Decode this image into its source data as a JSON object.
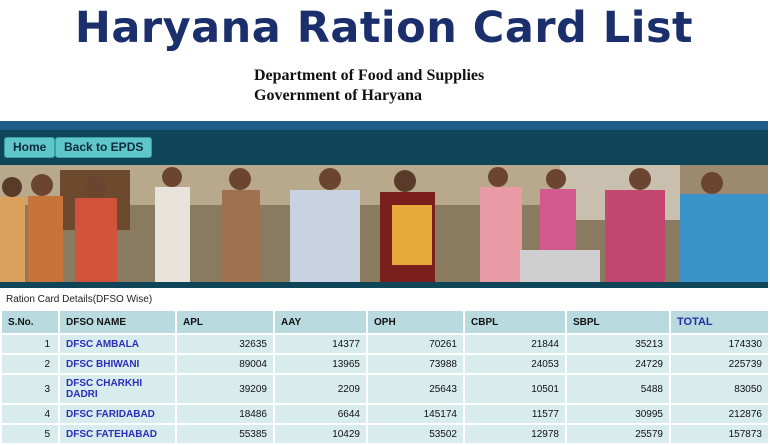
{
  "banner": {
    "title": "Haryana Ration Card List"
  },
  "department": {
    "line1": "Department of Food and Supplies",
    "line2": "Government of Haryana"
  },
  "nav": {
    "home_label": "Home",
    "back_label": "Back to EPDS"
  },
  "colors": {
    "title": "#1a2f6b",
    "nav_bar": "#0e4559",
    "button": "#5fc7c9",
    "header_cell": "#b9dbe0",
    "body_cell": "#d8ecee",
    "link": "#2a2fb8"
  },
  "section": {
    "label": "Ration Card Details(DFSO Wise)"
  },
  "table": {
    "headers": [
      "S.No.",
      "DFSO NAME",
      "APL",
      "AAY",
      "OPH",
      "CBPL",
      "SBPL",
      "TOTAL"
    ],
    "rows": [
      [
        "1",
        "DFSC AMBALA",
        "32635",
        "14377",
        "70261",
        "21844",
        "35213",
        "174330"
      ],
      [
        "2",
        "DFSC BHIWANI",
        "89004",
        "13965",
        "73988",
        "24053",
        "24729",
        "225739"
      ],
      [
        "3",
        "DFSC CHARKHI DADRI",
        "39209",
        "2209",
        "25643",
        "10501",
        "5488",
        "83050"
      ],
      [
        "4",
        "DFSC FARIDABAD",
        "18486",
        "6644",
        "145174",
        "11577",
        "30995",
        "212876"
      ],
      [
        "5",
        "DFSC FATEHABAD",
        "55385",
        "10429",
        "53502",
        "12978",
        "25579",
        "157873"
      ]
    ]
  }
}
